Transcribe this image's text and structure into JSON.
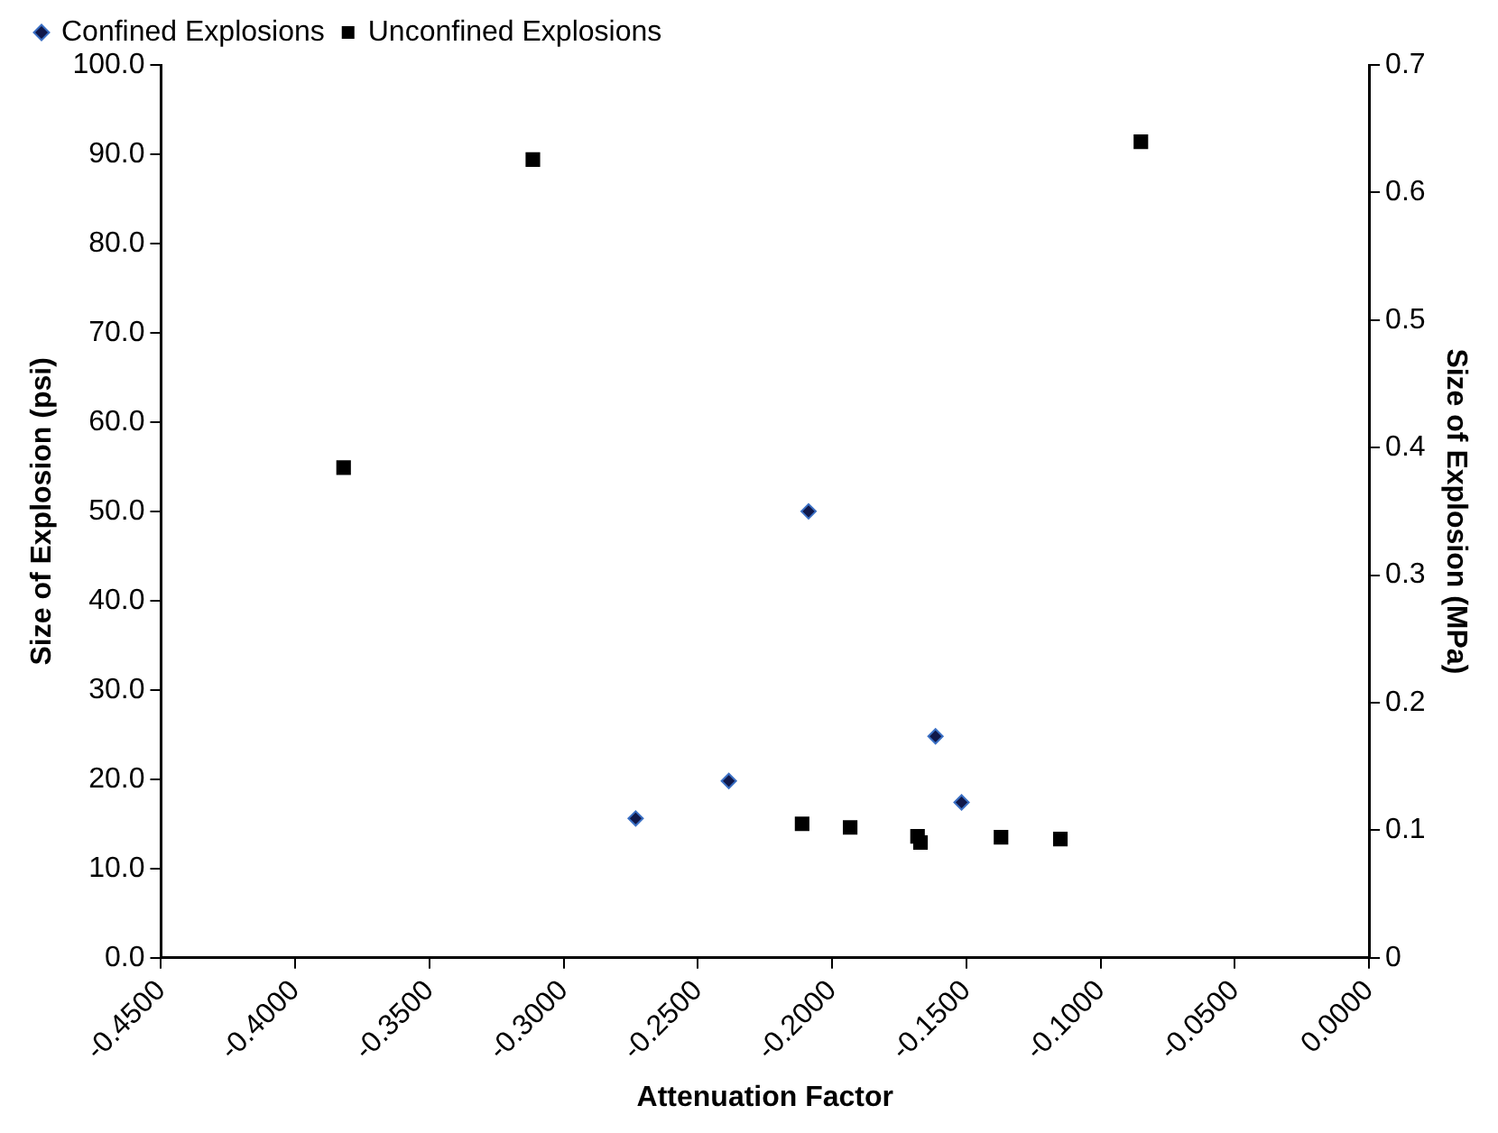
{
  "chart_data": {
    "type": "scatter",
    "xlabel": "Attenuation Factor",
    "ylabel": "Size of Explosion (psi)",
    "y2label": "Size of Explosion (MPa)",
    "series": [
      {
        "name": "Confined Explosions",
        "color": "#10184a",
        "marker": "diamond",
        "x": [
          -0.2732,
          -0.2385,
          -0.2088,
          -0.1615,
          -0.1518
        ],
        "values": [
          15.6,
          19.8,
          50.0,
          24.8,
          17.4
        ]
      },
      {
        "name": "Unconfined Explosions",
        "color": "#000000",
        "marker": "square",
        "x": [
          -0.382,
          -0.3115,
          -0.2112,
          -0.1933,
          -0.1682,
          -0.1671,
          -0.1371,
          -0.115,
          -0.085
        ],
        "values": [
          54.9,
          89.4,
          15.0,
          14.6,
          13.6,
          12.9,
          13.5,
          13.3,
          91.4
        ]
      }
    ],
    "xlim": [
      -0.45,
      0
    ],
    "xticks": [
      {
        "value": -0.45,
        "label": "-0.4500"
      },
      {
        "value": -0.4,
        "label": "-0.4000"
      },
      {
        "value": -0.35,
        "label": "-0.3500"
      },
      {
        "value": -0.3,
        "label": "-0.3000"
      },
      {
        "value": -0.25,
        "label": "-0.2500"
      },
      {
        "value": -0.2,
        "label": "-0.2000"
      },
      {
        "value": -0.15,
        "label": "-0.1500"
      },
      {
        "value": -0.1,
        "label": "-0.1000"
      },
      {
        "value": -0.05,
        "label": "-0.0500"
      },
      {
        "value": 0,
        "label": "0.0000"
      }
    ],
    "ylim": [
      0,
      100
    ],
    "yticks": [
      {
        "value": 0,
        "label": "0.0"
      },
      {
        "value": 10,
        "label": "10.0"
      },
      {
        "value": 20,
        "label": "20.0"
      },
      {
        "value": 30,
        "label": "30.0"
      },
      {
        "value": 40,
        "label": "40.0"
      },
      {
        "value": 50,
        "label": "50.0"
      },
      {
        "value": 60,
        "label": "60.0"
      },
      {
        "value": 70,
        "label": "70.0"
      },
      {
        "value": 80,
        "label": "80.0"
      },
      {
        "value": 90,
        "label": "90.0"
      },
      {
        "value": 100,
        "label": "100.0"
      }
    ],
    "y2lim": [
      0,
      0.7
    ],
    "y2ticks": [
      0,
      0.1,
      0.2,
      0.3,
      0.4,
      0.5,
      0.6,
      0.7
    ],
    "grid": false,
    "legend": "top left"
  }
}
